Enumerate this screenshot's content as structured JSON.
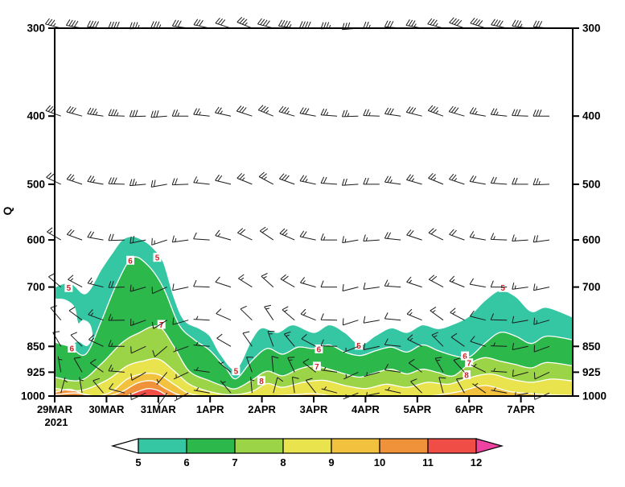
{
  "chart_data": {
    "type": "area",
    "subtype": "filled-contour-time-height-section-with-wind-barbs",
    "title": "",
    "ylabel": "Q",
    "y_scale": "log-pressure",
    "y_ticks": [
      300,
      400,
      500,
      600,
      700,
      850,
      925,
      1000
    ],
    "x_ticks": [
      "29MAR",
      "30MAR",
      "31MAR",
      "1APR",
      "2APR",
      "3APR",
      "4APR",
      "5APR",
      "6APR",
      "7APR"
    ],
    "x_sub_label": "2021",
    "x_range_days": [
      0,
      10
    ],
    "contour_levels": [
      5,
      6,
      7,
      8,
      9,
      10,
      11
    ],
    "fills": {
      "5": "#35c6a4",
      "6": "#2db84b",
      "7": "#9cd448",
      "8": "#e9e34d",
      "9": "#f2c23e",
      "10": "#f0923a",
      "11": "#ef4d45"
    },
    "contour_line_color": "#ffffff",
    "contour_label_color": "#cc2222",
    "contour_tops": {
      "5": [
        [
          0,
          700
        ],
        [
          0.3,
          690
        ],
        [
          0.6,
          715
        ],
        [
          0.9,
          660
        ],
        [
          1.1,
          628
        ],
        [
          1.3,
          600
        ],
        [
          1.5,
          593
        ],
        [
          1.7,
          600
        ],
        [
          1.9,
          616
        ],
        [
          2.1,
          645
        ],
        [
          2.3,
          722
        ],
        [
          2.5,
          780
        ],
        [
          2.8,
          802
        ],
        [
          3.0,
          822
        ],
        [
          3.2,
          872
        ],
        [
          3.5,
          915
        ],
        [
          3.8,
          832
        ],
        [
          4.0,
          800
        ],
        [
          4.3,
          812
        ],
        [
          4.6,
          792
        ],
        [
          5.0,
          812
        ],
        [
          5.3,
          792
        ],
        [
          5.6,
          812
        ],
        [
          5.9,
          845
        ],
        [
          6.2,
          820
        ],
        [
          6.5,
          800
        ],
        [
          6.8,
          812
        ],
        [
          7.1,
          792
        ],
        [
          7.4,
          802
        ],
        [
          7.7,
          790
        ],
        [
          8.0,
          770
        ],
        [
          8.3,
          732
        ],
        [
          8.6,
          708
        ],
        [
          8.9,
          722
        ],
        [
          9.2,
          758
        ],
        [
          9.5,
          748
        ],
        [
          10,
          772
        ]
      ],
      "6": [
        [
          0,
          832
        ],
        [
          0.3,
          852
        ],
        [
          0.6,
          872
        ],
        [
          0.9,
          782
        ],
        [
          1.2,
          692
        ],
        [
          1.5,
          636
        ],
        [
          1.8,
          652
        ],
        [
          2.1,
          702
        ],
        [
          2.4,
          792
        ],
        [
          2.7,
          832
        ],
        [
          3.0,
          862
        ],
        [
          3.3,
          912
        ],
        [
          3.5,
          945
        ],
        [
          3.8,
          892
        ],
        [
          4.1,
          856
        ],
        [
          4.4,
          872
        ],
        [
          4.7,
          852
        ],
        [
          5.0,
          856
        ],
        [
          5.3,
          846
        ],
        [
          5.6,
          866
        ],
        [
          5.9,
          876
        ],
        [
          6.2,
          862
        ],
        [
          6.5,
          852
        ],
        [
          6.8,
          866
        ],
        [
          7.1,
          846
        ],
        [
          7.4,
          862
        ],
        [
          7.7,
          876
        ],
        [
          8.0,
          880
        ],
        [
          8.3,
          842
        ],
        [
          8.6,
          812
        ],
        [
          8.9,
          822
        ],
        [
          9.2,
          842
        ],
        [
          9.5,
          822
        ],
        [
          10,
          832
        ]
      ],
      "7": [
        [
          0,
          940
        ],
        [
          0.5,
          950
        ],
        [
          0.9,
          900
        ],
        [
          1.3,
          840
        ],
        [
          1.6,
          815
        ],
        [
          2.0,
          796
        ],
        [
          2.3,
          850
        ],
        [
          2.6,
          922
        ],
        [
          3.0,
          952
        ],
        [
          3.3,
          970
        ],
        [
          3.5,
          976
        ],
        [
          3.8,
          950
        ],
        [
          4.1,
          922
        ],
        [
          4.4,
          936
        ],
        [
          4.7,
          916
        ],
        [
          5.0,
          906
        ],
        [
          5.3,
          916
        ],
        [
          5.6,
          930
        ],
        [
          5.9,
          940
        ],
        [
          6.2,
          926
        ],
        [
          6.5,
          916
        ],
        [
          6.8,
          930
        ],
        [
          7.1,
          916
        ],
        [
          7.4,
          926
        ],
        [
          7.7,
          936
        ],
        [
          8.0,
          900
        ],
        [
          8.3,
          882
        ],
        [
          8.6,
          892
        ],
        [
          8.9,
          902
        ],
        [
          9.2,
          912
        ],
        [
          9.5,
          896
        ],
        [
          10,
          906
        ]
      ],
      "8": [
        [
          0,
          975
        ],
        [
          0.5,
          982
        ],
        [
          1.0,
          950
        ],
        [
          1.4,
          906
        ],
        [
          1.7,
          892
        ],
        [
          2.0,
          886
        ],
        [
          2.3,
          920
        ],
        [
          2.6,
          962
        ],
        [
          3.0,
          986
        ],
        [
          3.4,
          996
        ],
        [
          3.8,
          986
        ],
        [
          4.1,
          960
        ],
        [
          4.4,
          972
        ],
        [
          4.8,
          956
        ],
        [
          5.2,
          950
        ],
        [
          5.6,
          966
        ],
        [
          6.0,
          976
        ],
        [
          6.4,
          962
        ],
        [
          6.8,
          972
        ],
        [
          7.2,
          956
        ],
        [
          7.6,
          962
        ],
        [
          8.0,
          942
        ],
        [
          8.4,
          930
        ],
        [
          8.8,
          946
        ],
        [
          9.2,
          956
        ],
        [
          9.6,
          946
        ],
        [
          10,
          952
        ]
      ],
      "9": [
        [
          0,
          996
        ],
        [
          0.4,
          990
        ],
        [
          0.8,
          1002
        ],
        [
          1.1,
          986
        ],
        [
          1.4,
          946
        ],
        [
          1.7,
          930
        ],
        [
          2.0,
          932
        ],
        [
          2.3,
          962
        ],
        [
          2.6,
          992
        ],
        [
          3.0,
          1006
        ],
        [
          4.0,
          1006
        ],
        [
          4.6,
          996
        ],
        [
          5.0,
          992
        ],
        [
          5.4,
          1000
        ],
        [
          6.0,
          1006
        ],
        [
          6.6,
          1000
        ],
        [
          7.2,
          1006
        ],
        [
          7.8,
          986
        ],
        [
          8.3,
          966
        ],
        [
          8.8,
          986
        ],
        [
          9.2,
          992
        ],
        [
          9.6,
          996
        ],
        [
          10,
          998
        ]
      ],
      "10": [
        [
          0,
          988
        ],
        [
          0.3,
          978
        ],
        [
          0.6,
          996
        ],
        [
          1.0,
          1006
        ],
        [
          1.3,
          986
        ],
        [
          1.6,
          958
        ],
        [
          1.9,
          952
        ],
        [
          2.1,
          972
        ],
        [
          2.4,
          996
        ],
        [
          2.7,
          1006
        ],
        [
          10,
          1006
        ]
      ],
      "11": [
        [
          1.4,
          1006
        ],
        [
          1.6,
          986
        ],
        [
          1.8,
          976
        ],
        [
          2.0,
          982
        ],
        [
          2.2,
          1002
        ],
        [
          2.4,
          1006
        ]
      ]
    },
    "dry_pockets": [
      [
        [
          0,
          728
        ],
        [
          0.2,
          730
        ],
        [
          0.38,
          748
        ],
        [
          0.45,
          788
        ],
        [
          0.55,
          780
        ],
        [
          0.68,
          792
        ],
        [
          0.72,
          824
        ],
        [
          0.62,
          848
        ],
        [
          0.45,
          836
        ],
        [
          0.3,
          848
        ],
        [
          0.12,
          844
        ],
        [
          0,
          838
        ]
      ]
    ],
    "contour_labels": [
      {
        "text": "5",
        "t": 0.27,
        "p": 702
      },
      {
        "text": "6",
        "t": 0.33,
        "p": 856
      },
      {
        "text": "6",
        "t": 1.46,
        "p": 642
      },
      {
        "text": "5",
        "t": 1.98,
        "p": 636
      },
      {
        "text": "7",
        "t": 2.06,
        "p": 792
      },
      {
        "text": "5",
        "t": 3.5,
        "p": 922
      },
      {
        "text": "8",
        "t": 3.99,
        "p": 952
      },
      {
        "text": "6",
        "t": 5.1,
        "p": 858
      },
      {
        "text": "7",
        "t": 5.06,
        "p": 908
      },
      {
        "text": "5",
        "t": 5.87,
        "p": 848
      },
      {
        "text": "6",
        "t": 7.92,
        "p": 878
      },
      {
        "text": "7",
        "t": 8.0,
        "p": 898
      },
      {
        "text": "8",
        "t": 7.95,
        "p": 934
      },
      {
        "text": "5",
        "t": 8.65,
        "p": 702
      }
    ],
    "colorbar": {
      "labels": [
        5,
        6,
        7,
        8,
        9,
        10,
        11,
        12
      ],
      "colors": [
        "#35c6a4",
        "#2db84b",
        "#9cd448",
        "#e9e34d",
        "#f2c23e",
        "#f0923a",
        "#ef4d45"
      ],
      "under_color": "#ffffff",
      "over_color": "#f043a1"
    },
    "wind_barbs": {
      "t0": 0.12,
      "dt": 0.41,
      "color": "#1b1b1b",
      "rows": [
        {
          "pressure": 300,
          "dirs": [
            285,
            280,
            275,
            270,
            268,
            272,
            278,
            282,
            288,
            292,
            285,
            278,
            272,
            268,
            265,
            270,
            275,
            280,
            285,
            290,
            288,
            282,
            278,
            275
          ],
          "spds": [
            35,
            38,
            42,
            40,
            37,
            33,
            30,
            28,
            32,
            36,
            40,
            43,
            38,
            34,
            30,
            27,
            30,
            33,
            37,
            40,
            42,
            38,
            35,
            32
          ]
        },
        {
          "pressure": 400,
          "dirs": [
            290,
            285,
            278,
            272,
            268,
            265,
            270,
            276,
            282,
            288,
            292,
            286,
            280,
            274,
            268,
            272,
            278,
            284,
            290,
            286,
            280,
            276,
            272,
            270
          ],
          "spds": [
            28,
            30,
            33,
            35,
            32,
            28,
            25,
            23,
            26,
            30,
            33,
            35,
            31,
            27,
            24,
            26,
            29,
            32,
            34,
            30,
            27,
            25,
            28,
            30
          ]
        },
        {
          "pressure": 500,
          "dirs": [
            295,
            288,
            280,
            272,
            265,
            260,
            268,
            276,
            284,
            292,
            298,
            290,
            282,
            274,
            266,
            270,
            278,
            286,
            292,
            288,
            280,
            274,
            270,
            268
          ],
          "spds": [
            22,
            24,
            26,
            28,
            25,
            22,
            19,
            17,
            20,
            23,
            26,
            28,
            24,
            21,
            18,
            20,
            23,
            25,
            27,
            24,
            21,
            19,
            22,
            24
          ]
        },
        {
          "pressure": 600,
          "dirs": [
            300,
            290,
            280,
            268,
            258,
            252,
            262,
            274,
            286,
            296,
            304,
            294,
            282,
            270,
            260,
            266,
            276,
            288,
            296,
            290,
            280,
            272,
            266,
            262
          ],
          "spds": [
            16,
            18,
            20,
            22,
            19,
            16,
            13,
            12,
            15,
            18,
            21,
            23,
            19,
            16,
            13,
            15,
            18,
            20,
            22,
            19,
            16,
            14,
            17,
            19
          ]
        },
        {
          "pressure": 700,
          "dirs": [
            310,
            298,
            284,
            268,
            254,
            246,
            258,
            272,
            288,
            302,
            312,
            300,
            286,
            270,
            256,
            262,
            274,
            288,
            298,
            292,
            280,
            270,
            262,
            258
          ],
          "spds": [
            12,
            14,
            16,
            18,
            15,
            12,
            10,
            9,
            11,
            14,
            17,
            19,
            15,
            12,
            10,
            11,
            14,
            16,
            18,
            15,
            12,
            10,
            13,
            15
          ]
        },
        {
          "pressure": 780,
          "dirs": [
            320,
            306,
            290,
            269,
            250,
            238,
            254,
            273,
            294,
            314,
            326,
            310,
            292,
            271,
            252,
            260,
            275,
            292,
            306,
            298,
            284,
            271,
            260,
            254
          ],
          "spds": [
            10,
            12,
            14,
            16,
            13,
            10,
            8,
            7,
            9,
            12,
            15,
            17,
            13,
            10,
            8,
            9,
            12,
            14,
            16,
            13,
            10,
            8,
            11,
            13
          ]
        },
        {
          "pressure": 850,
          "dirs": [
            330,
            315,
            295,
            270,
            245,
            230,
            250,
            275,
            300,
            325,
            340,
            320,
            298,
            272,
            248,
            258,
            276,
            296,
            315,
            305,
            288,
            272,
            258,
            250
          ],
          "spds": [
            9,
            11,
            13,
            15,
            12,
            9,
            7,
            6,
            8,
            11,
            14,
            16,
            12,
            9,
            7,
            8,
            11,
            13,
            15,
            12,
            9,
            7,
            10,
            12
          ]
        },
        {
          "pressure": 925,
          "dirs": [
            350,
            330,
            305,
            275,
            240,
            220,
            245,
            278,
            310,
            340,
            355,
            335,
            308,
            278,
            245,
            255,
            278,
            305,
            330,
            318,
            296,
            274,
            255,
            245
          ],
          "spds": [
            7,
            9,
            11,
            13,
            10,
            7,
            5,
            4,
            6,
            9,
            12,
            14,
            10,
            7,
            5,
            6,
            9,
            11,
            13,
            10,
            7,
            5,
            8,
            10
          ]
        },
        {
          "pressure": 990,
          "dirs": [
            15,
            350,
            320,
            285,
            245,
            215,
            240,
            280,
            320,
            355,
            15,
            352,
            322,
            285,
            248,
            258,
            282,
            315,
            345,
            330,
            305,
            280,
            258,
            246
          ],
          "spds": [
            5,
            7,
            9,
            11,
            8,
            5,
            4,
            3,
            5,
            7,
            10,
            12,
            8,
            5,
            4,
            5,
            7,
            9,
            11,
            8,
            5,
            4,
            6,
            8
          ]
        }
      ]
    }
  }
}
